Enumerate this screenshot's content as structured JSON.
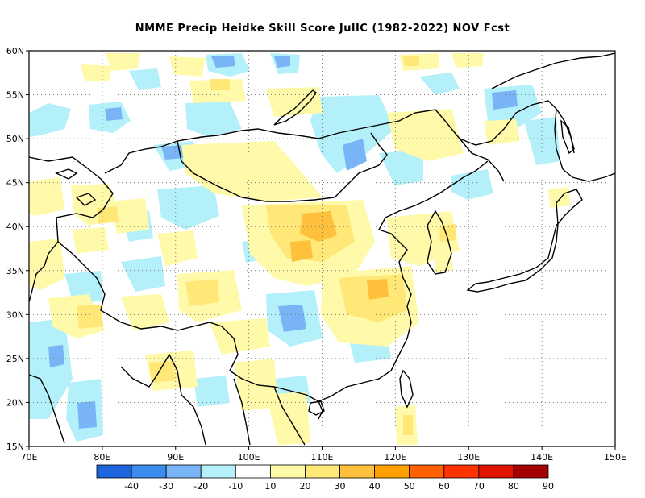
{
  "title": "NMME Precip Heidke Skill Score JulIC (1982-2022) NOV Fcst",
  "map": {
    "lon_labels": [
      "70E",
      "80E",
      "90E",
      "100E",
      "110E",
      "120E",
      "130E",
      "140E",
      "150E"
    ],
    "lat_labels": [
      "60N",
      "55N",
      "50N",
      "45N",
      "40N",
      "35N",
      "30N",
      "25N",
      "20N",
      "15N"
    ],
    "lon_range": [
      70,
      150
    ],
    "lat_range": [
      15,
      60
    ],
    "grid_style": "dotted"
  },
  "colorbar": {
    "labels": [
      "-40",
      "-30",
      "-20",
      "-10",
      "10",
      "20",
      "30",
      "40",
      "50",
      "60",
      "70",
      "80",
      "90"
    ],
    "colors": [
      "#1e64dc",
      "#3c8cf0",
      "#78b4f6",
      "#b4f0fa",
      "#ffffff",
      "#fffaaa",
      "#ffe878",
      "#ffc03c",
      "#ffa000",
      "#ff6000",
      "#ff3200",
      "#e11400",
      "#a50000"
    ]
  },
  "palette": {
    "neg10": "#b4f0fa",
    "neg20": "#78b4f6",
    "neg30": "#3c8cf0",
    "pos10": "#fffaaa",
    "pos20": "#ffe878",
    "pos30": "#ffc03c",
    "coast": "#000000"
  }
}
